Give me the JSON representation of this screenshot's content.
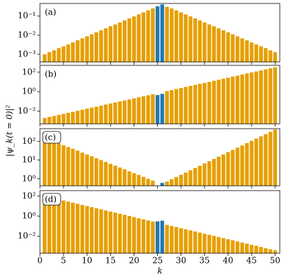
{
  "figure": {
    "ylabel": "|ψ_k(t = 0)|²"
  },
  "chart_data": [
    {
      "type": "bar",
      "annotation": "(a)",
      "annotation_boxed": false,
      "log_scale": true,
      "color": "#e69f00",
      "highlight": {
        "x": [
          25,
          26
        ],
        "color": "#1f77b4"
      },
      "x": [
        1,
        2,
        3,
        4,
        5,
        6,
        7,
        8,
        9,
        10,
        11,
        12,
        13,
        14,
        15,
        16,
        17,
        18,
        19,
        20,
        21,
        22,
        23,
        24,
        25,
        26,
        27,
        28,
        29,
        30,
        31,
        32,
        33,
        34,
        35,
        36,
        37,
        38,
        39,
        40,
        41,
        42,
        43,
        44,
        45,
        46,
        47,
        48,
        49,
        50
      ],
      "values": [
        0.001,
        0.0013,
        0.0016,
        0.0021,
        0.0026,
        0.0033,
        0.0042,
        0.0054,
        0.0068,
        0.0087,
        0.011,
        0.014,
        0.0178,
        0.0226,
        0.029,
        0.036,
        0.046,
        0.059,
        0.075,
        0.095,
        0.121,
        0.153,
        0.195,
        0.248,
        0.32,
        0.4,
        0.3,
        0.248,
        0.195,
        0.153,
        0.121,
        0.095,
        0.075,
        0.059,
        0.046,
        0.036,
        0.029,
        0.0226,
        0.0178,
        0.014,
        0.011,
        0.0087,
        0.0068,
        0.0054,
        0.0042,
        0.0033,
        0.0026,
        0.0021,
        0.0016,
        0.0013
      ],
      "xlim": [
        0,
        51
      ],
      "xticks": [
        0,
        5,
        10,
        15,
        20,
        25,
        30,
        35,
        40,
        45,
        50
      ],
      "ylim": [
        0.0004,
        0.45
      ],
      "yticks": [
        {
          "value": 0.001,
          "label": "10⁻³"
        },
        {
          "value": 0.01,
          "label": "10⁻²"
        },
        {
          "value": 0.1,
          "label": "10⁻¹"
        }
      ]
    },
    {
      "type": "bar",
      "annotation": "(b)",
      "annotation_boxed": false,
      "log_scale": true,
      "color": "#e69f00",
      "highlight": {
        "x": [
          25,
          26
        ],
        "color": "#1f77b4"
      },
      "x": [
        1,
        2,
        3,
        4,
        5,
        6,
        7,
        8,
        9,
        10,
        11,
        12,
        13,
        14,
        15,
        16,
        17,
        18,
        19,
        20,
        21,
        22,
        23,
        24,
        25,
        26,
        27,
        28,
        29,
        30,
        31,
        32,
        33,
        34,
        35,
        36,
        37,
        38,
        39,
        40,
        41,
        42,
        43,
        44,
        45,
        46,
        47,
        48,
        49,
        50
      ],
      "values": [
        0.002,
        0.00255,
        0.00325,
        0.00415,
        0.0053,
        0.0068,
        0.0086,
        0.011,
        0.0141,
        0.018,
        0.023,
        0.029,
        0.037,
        0.048,
        0.061,
        0.078,
        0.1,
        0.127,
        0.162,
        0.207,
        0.264,
        0.338,
        0.43,
        0.55,
        0.45,
        0.6,
        1.15,
        1.46,
        1.87,
        2.39,
        3.05,
        3.89,
        4.97,
        6.34,
        8.09,
        10.3,
        13.2,
        16.9,
        21.5,
        27.5,
        35.1,
        44.8,
        57.1,
        72.9,
        93.1,
        119,
        152,
        194,
        248,
        316
      ],
      "xlim": [
        0,
        51
      ],
      "xticks": [
        0,
        5,
        10,
        15,
        20,
        25,
        30,
        35,
        40,
        45,
        50
      ],
      "ylim": [
        0.0005,
        500
      ],
      "yticks": [
        {
          "value": 0.01,
          "label": "10⁻²"
        },
        {
          "value": 1,
          "label": "10⁰"
        },
        {
          "value": 100,
          "label": "10²"
        }
      ]
    },
    {
      "type": "bar",
      "annotation": "(c)",
      "annotation_boxed": true,
      "log_scale": true,
      "color": "#e69f00",
      "highlight": {
        "x": [
          25,
          26
        ],
        "color": "#1f77b4"
      },
      "x": [
        1,
        2,
        3,
        4,
        5,
        6,
        7,
        8,
        9,
        10,
        11,
        12,
        13,
        14,
        15,
        16,
        17,
        18,
        19,
        20,
        21,
        22,
        23,
        24,
        25,
        26,
        27,
        28,
        29,
        30,
        31,
        32,
        33,
        34,
        35,
        36,
        37,
        38,
        39,
        40,
        41,
        42,
        43,
        44,
        45,
        46,
        47,
        48,
        49,
        50
      ],
      "values": [
        158,
        126,
        100,
        79,
        63,
        50,
        40,
        32,
        25,
        20,
        16,
        12.6,
        10,
        7.9,
        6.3,
        5,
        4,
        3.2,
        2.5,
        2,
        1.6,
        1.26,
        1,
        0.79,
        0.4,
        0.6,
        0.71,
        0.94,
        1.24,
        1.63,
        2.16,
        2.85,
        3.77,
        4.98,
        6.6,
        8.7,
        11.5,
        15.2,
        20,
        26.5,
        35,
        46,
        61,
        81,
        107,
        141,
        186,
        246,
        325,
        430
      ],
      "xlim": [
        0,
        51
      ],
      "xticks": [
        0,
        5,
        10,
        15,
        20,
        25,
        30,
        35,
        40,
        45,
        50
      ],
      "ylim": [
        0.42,
        480
      ],
      "yticks": [
        {
          "value": 1,
          "label": "10⁰"
        },
        {
          "value": 10,
          "label": "10¹"
        },
        {
          "value": 100,
          "label": "10²"
        }
      ]
    },
    {
      "type": "bar",
      "annotation": "(d)",
      "annotation_boxed": true,
      "log_scale": true,
      "color": "#e69f00",
      "highlight": {
        "x": [
          25,
          26
        ],
        "color": "#1f77b4"
      },
      "x": [
        1,
        2,
        3,
        4,
        5,
        6,
        7,
        8,
        9,
        10,
        11,
        12,
        13,
        14,
        15,
        16,
        17,
        18,
        19,
        20,
        21,
        22,
        23,
        24,
        25,
        26,
        27,
        28,
        29,
        30,
        31,
        32,
        33,
        34,
        35,
        36,
        37,
        38,
        39,
        40,
        41,
        42,
        43,
        44,
        45,
        46,
        47,
        48,
        49,
        50
      ],
      "values": [
        100,
        77.6,
        60.2,
        46.7,
        36.2,
        28.1,
        21.8,
        16.9,
        13.1,
        10.2,
        7.9,
        6.1,
        4.76,
        3.69,
        2.86,
        2.22,
        1.72,
        1.34,
        1.04,
        0.8,
        0.62,
        0.48,
        0.375,
        0.29,
        0.3,
        0.35,
        0.136,
        0.105,
        0.082,
        0.063,
        0.049,
        0.038,
        0.0296,
        0.023,
        0.0178,
        0.0138,
        0.0107,
        0.0083,
        0.0064,
        0.005,
        0.0039,
        0.003,
        0.0023,
        0.0018,
        0.0014,
        0.0011,
        0.00084,
        0.00065,
        0.0005,
        0.0004
      ],
      "xlim": [
        0,
        51
      ],
      "xticks": [
        0,
        5,
        10,
        15,
        20,
        25,
        30,
        35,
        40,
        45,
        50
      ],
      "xlabel": "k",
      "ylim": [
        0.0002,
        350
      ],
      "yticks": [
        {
          "value": 0.01,
          "label": "10⁻²"
        },
        {
          "value": 1,
          "label": "10⁰"
        },
        {
          "value": 100,
          "label": "10²"
        }
      ]
    }
  ]
}
